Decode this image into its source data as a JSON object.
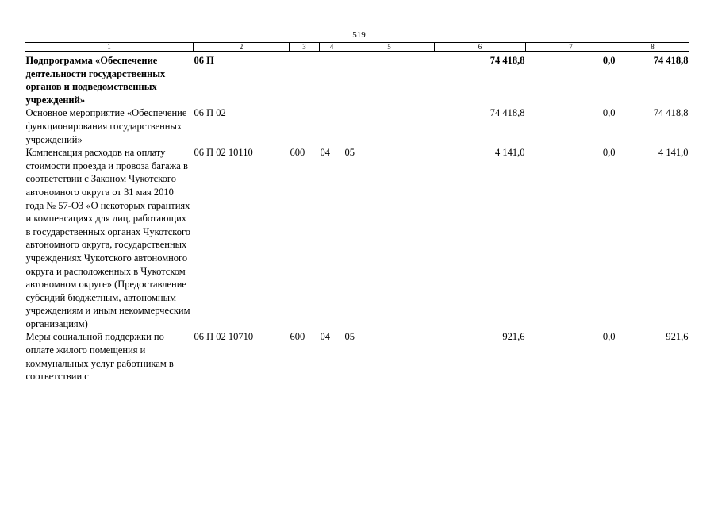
{
  "page_number": "519",
  "columns": [
    "1",
    "2",
    "3",
    "4",
    "5",
    "6",
    "7",
    "8"
  ],
  "rows": [
    {
      "bold": true,
      "name": "Подпрограмма «Обеспечение деятельности государственных органов и подведомственных учреждений»",
      "csr": "06 П",
      "vr": "",
      "rz": "",
      "pr": "",
      "sum1": "74 418,8",
      "sum2": "0,0",
      "sum3": "74 418,8"
    },
    {
      "bold": false,
      "name": "Основное мероприятие «Обеспечение функционирования государственных учреждений»",
      "csr": "06 П 02",
      "vr": "",
      "rz": "",
      "pr": "",
      "sum1": "74 418,8",
      "sum2": "0,0",
      "sum3": "74 418,8"
    },
    {
      "bold": false,
      "name": "Компенсация расходов на оплату стоимости проезда и провоза багажа в соответствии с Законом Чукотского автономного округа от 31 мая 2010 года № 57-ОЗ «О некоторых гарантиях и компенсациях для лиц, работающих в государственных органах Чукотского автономного округа, государственных учреждениях Чукотского автономного округа и расположенных в Чукотском автономном округе» (Предоставление субсидий бюджетным, автономным учреждениям и иным некоммерческим организациям)",
      "csr": "06 П 02 10110",
      "vr": "600",
      "rz": "04",
      "pr": "05",
      "sum1": "4 141,0",
      "sum2": "0,0",
      "sum3": "4 141,0"
    },
    {
      "bold": false,
      "name": "Меры социальной поддержки по оплате жилого помещения и коммунальных услуг работникам в соответствии с",
      "csr": "06 П 02 10710",
      "vr": "600",
      "rz": "04",
      "pr": "05",
      "sum1": "921,6",
      "sum2": "0,0",
      "sum3": "921,6"
    }
  ]
}
